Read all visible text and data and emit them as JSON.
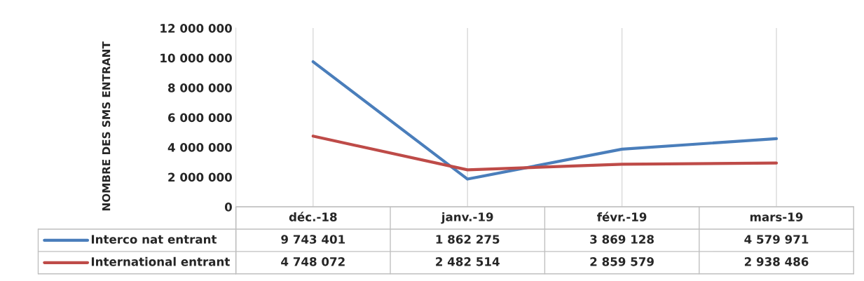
{
  "chart_data": {
    "type": "line",
    "ylabel": "NOMBRE DES SMS ENTRANT",
    "categories": [
      "déc.-18",
      "janv.-19",
      "févr.-19",
      "mars-19"
    ],
    "series": [
      {
        "name": "Interco nat entrant",
        "color": "#4a7ebb",
        "values": [
          9743401,
          1862275,
          3869128,
          4579971
        ],
        "value_labels": [
          "9 743 401",
          "1 862 275",
          "3 869 128",
          "4 579 971"
        ]
      },
      {
        "name": "International entrant",
        "color": "#be4b48",
        "values": [
          4748072,
          2482514,
          2859579,
          2938486
        ],
        "value_labels": [
          "4 748 072",
          "2 482 514",
          "2 859 579",
          "2 938 486"
        ]
      }
    ],
    "ylim": [
      0,
      12000000
    ],
    "yticks": [
      {
        "value": 0,
        "label": "0"
      },
      {
        "value": 2000000,
        "label": "2 000 000"
      },
      {
        "value": 4000000,
        "label": "4 000 000"
      },
      {
        "value": 6000000,
        "label": "6 000 000"
      },
      {
        "value": 8000000,
        "label": "8 000 000"
      },
      {
        "value": 10000000,
        "label": "10 000 000"
      },
      {
        "value": 12000000,
        "label": "12 000 000"
      }
    ],
    "grid": "x",
    "legend": "bottom left",
    "marker": "none",
    "line_style": "solid"
  }
}
